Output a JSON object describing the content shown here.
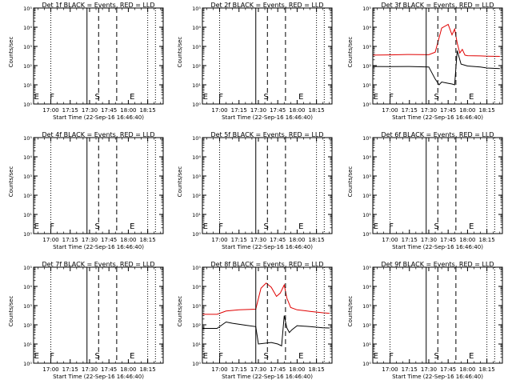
{
  "figure": {
    "start_time_label": "Start Time (22-Sep-16 16:46:40)",
    "ylabel": "Counts/sec",
    "x_tick_labels": [
      "17:00",
      "17:15",
      "17:30",
      "17:45",
      "18:00",
      "18:15"
    ],
    "y_tick_labels": [
      "10⁰",
      "10¹",
      "10²",
      "10³",
      "10⁴",
      "10⁵"
    ],
    "marker_labels": [
      "E",
      "F",
      "S",
      "E"
    ],
    "colors": {
      "events": "#000000",
      "lld": "#e00000",
      "axes": "#000000"
    }
  },
  "chart_data": [
    {
      "type": "line",
      "title": "Det 1f BLACK = Events, RED = LLD",
      "xlabel": "Start Time (22-Sep-16 16:46:40)",
      "ylabel": "Counts/sec",
      "xlim": [
        "16:46:40",
        "18:27"
      ],
      "ylim": [
        1,
        100000
      ],
      "y_scale": "log",
      "series": []
    },
    {
      "type": "line",
      "title": "Det 2f BLACK = Events, RED = LLD",
      "xlabel": "Start Time (22-Sep-16 16:46:40)",
      "ylabel": "Counts/sec",
      "xlim": [
        "16:46:40",
        "18:27"
      ],
      "ylim": [
        1,
        100000
      ],
      "y_scale": "log",
      "series": []
    },
    {
      "type": "line",
      "title": "Det 3f BLACK = Events, RED = LLD",
      "xlabel": "Start Time (22-Sep-16 16:46:40)",
      "ylabel": "Counts/sec",
      "xlim": [
        "16:46:40",
        "18:27"
      ],
      "ylim": [
        1,
        100000
      ],
      "y_scale": "log",
      "series": [
        {
          "color": "#000000",
          "x": [
            "16:47",
            "17:00",
            "17:15",
            "17:30",
            "17:35",
            "17:38",
            "17:40",
            "17:45",
            "17:48",
            "17:50",
            "17:52",
            "17:55",
            "18:00",
            "18:10",
            "18:15",
            "18:20",
            "18:25"
          ],
          "y": [
            90,
            88,
            90,
            85,
            20,
            10,
            14,
            12,
            11,
            10,
            600,
            120,
            95,
            85,
            75,
            72,
            70
          ]
        },
        {
          "color": "#e00000",
          "x": [
            "16:47",
            "17:00",
            "17:15",
            "17:30",
            "17:35",
            "17:40",
            "17:45",
            "17:48",
            "17:50",
            "17:52",
            "17:54",
            "17:56",
            "17:58",
            "18:00",
            "18:10",
            "18:15",
            "18:20",
            "18:25"
          ],
          "y": [
            350,
            360,
            380,
            370,
            500,
            9000,
            14000,
            4000,
            8000,
            1500,
            450,
            700,
            350,
            330,
            320,
            310,
            305,
            300
          ]
        }
      ]
    },
    {
      "type": "line",
      "title": "Det 4f BLACK = Events, RED = LLD",
      "xlabel": "Start Time (22-Sep-16 16:46:40)",
      "ylabel": "Counts/sec",
      "xlim": [
        "16:46:40",
        "18:27"
      ],
      "ylim": [
        1,
        100000
      ],
      "y_scale": "log",
      "series": []
    },
    {
      "type": "line",
      "title": "Det 5f BLACK = Events, RED = LLD",
      "xlabel": "Start Time (22-Sep-16 16:46:40)",
      "ylabel": "Counts/sec",
      "xlim": [
        "16:46:40",
        "18:27"
      ],
      "ylim": [
        1,
        100000
      ],
      "y_scale": "log",
      "series": []
    },
    {
      "type": "line",
      "title": "Det 6f BLACK = Events, RED = LLD",
      "xlabel": "Start Time (22-Sep-16 16:46:40)",
      "ylabel": "Counts/sec",
      "xlim": [
        "16:46:40",
        "18:27"
      ],
      "ylim": [
        1,
        100000
      ],
      "y_scale": "log",
      "series": []
    },
    {
      "type": "line",
      "title": "Det 7f BLACK = Events, RED = LLD",
      "xlabel": "Start Time (22-Sep-16 16:46:40)",
      "ylabel": "Counts/sec",
      "xlim": [
        "16:46:40",
        "18:27"
      ],
      "ylim": [
        1,
        100000
      ],
      "y_scale": "log",
      "series": []
    },
    {
      "type": "line",
      "title": "Det 8f BLACK = Events, RED = LLD",
      "xlabel": "Start Time (22-Sep-16 16:46:40)",
      "ylabel": "Counts/sec",
      "xlim": [
        "16:46:40",
        "18:27"
      ],
      "ylim": [
        1,
        100000
      ],
      "y_scale": "log",
      "series": [
        {
          "color": "#000000",
          "x": [
            "16:47",
            "16:58",
            "17:05",
            "17:10",
            "17:20",
            "17:28",
            "17:30",
            "17:40",
            "17:45",
            "17:48",
            "17:50",
            "17:52",
            "17:54",
            "17:56",
            "18:00",
            "18:10",
            "18:20",
            "18:25"
          ],
          "y": [
            65,
            65,
            140,
            120,
            95,
            80,
            10,
            12,
            10,
            8,
            300,
            70,
            40,
            55,
            90,
            80,
            70,
            68
          ]
        },
        {
          "color": "#e00000",
          "x": [
            "16:47",
            "16:58",
            "17:05",
            "17:15",
            "17:28",
            "17:32",
            "17:36",
            "17:40",
            "17:44",
            "17:47",
            "17:50",
            "17:52",
            "17:55",
            "18:00",
            "18:10",
            "18:20",
            "18:25"
          ],
          "y": [
            350,
            350,
            520,
            600,
            650,
            8000,
            15000,
            9000,
            3000,
            4500,
            12000,
            2500,
            800,
            600,
            500,
            420,
            400
          ]
        }
      ]
    },
    {
      "type": "line",
      "title": "Det 9f BLACK = Events, RED = LLD",
      "xlabel": "Start Time (22-Sep-16 16:46:40)",
      "ylabel": "Counts/sec",
      "xlim": [
        "16:46:40",
        "18:27"
      ],
      "ylim": [
        1,
        100000
      ],
      "y_scale": "log",
      "series": []
    }
  ]
}
